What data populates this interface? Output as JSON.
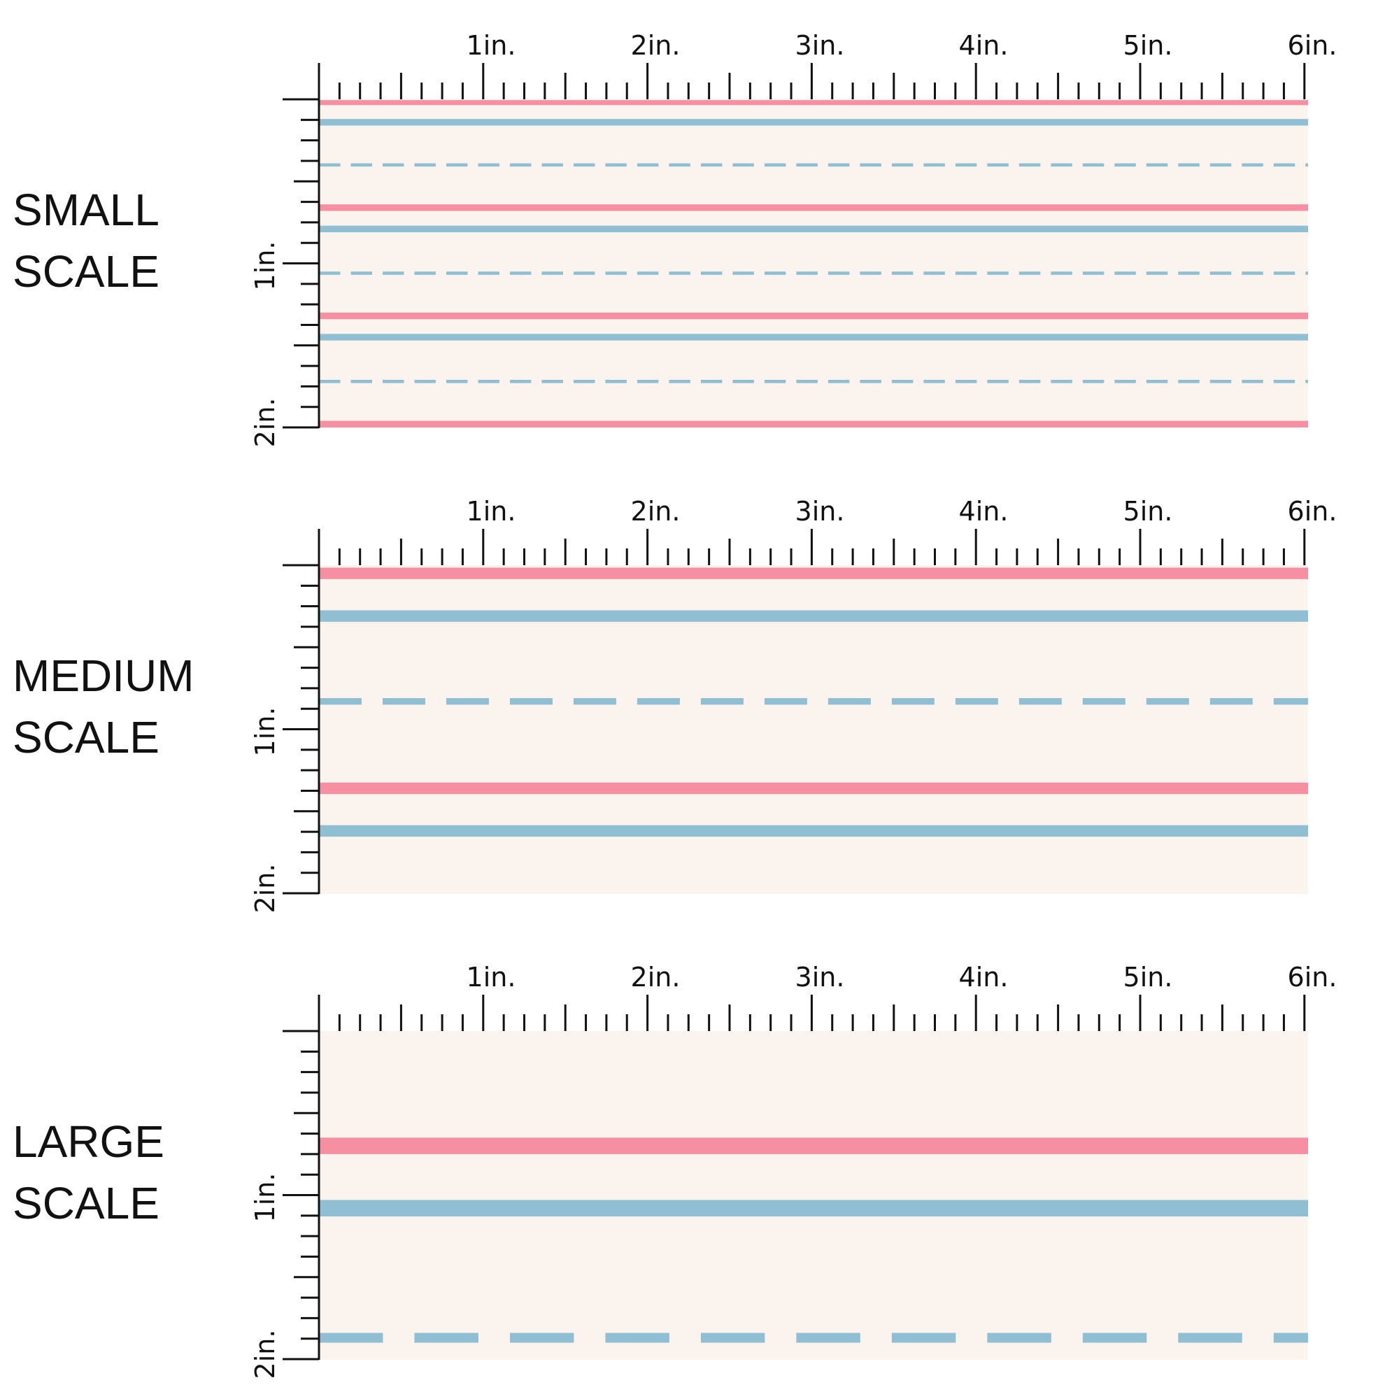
{
  "colors": {
    "background": "#ffffff",
    "fabric": "#fbf4ee",
    "pink": "#f78fa2",
    "blue": "#90bed3",
    "ruler": "#111111"
  },
  "units": {
    "x_labels": [
      "1in.",
      "2in.",
      "3in.",
      "4in.",
      "5in.",
      "6in."
    ],
    "y_labels": [
      "1in.",
      "2in."
    ]
  },
  "panels": [
    {
      "id": "small",
      "title_line1": "SMALL",
      "title_line2": "SCALE",
      "stripes": [
        {
          "y_in": 0.02,
          "color": "pink",
          "weight_in": 0.03,
          "style": "solid"
        },
        {
          "y_in": 0.14,
          "color": "blue",
          "weight_in": 0.04,
          "style": "solid"
        },
        {
          "y_in": 0.4,
          "color": "blue",
          "weight_in": 0.02,
          "style": "dashed"
        },
        {
          "y_in": 0.66,
          "color": "pink",
          "weight_in": 0.04,
          "style": "solid"
        },
        {
          "y_in": 0.79,
          "color": "blue",
          "weight_in": 0.04,
          "style": "solid"
        },
        {
          "y_in": 1.06,
          "color": "blue",
          "weight_in": 0.02,
          "style": "dashed"
        },
        {
          "y_in": 1.32,
          "color": "pink",
          "weight_in": 0.04,
          "style": "solid"
        },
        {
          "y_in": 1.45,
          "color": "blue",
          "weight_in": 0.04,
          "style": "solid"
        },
        {
          "y_in": 1.72,
          "color": "blue",
          "weight_in": 0.02,
          "style": "dashed"
        },
        {
          "y_in": 1.98,
          "color": "pink",
          "weight_in": 0.04,
          "style": "solid"
        }
      ]
    },
    {
      "id": "medium",
      "title_line1": "MEDIUM",
      "title_line2": "SCALE",
      "stripes": [
        {
          "y_in": 0.05,
          "color": "pink",
          "weight_in": 0.07,
          "style": "solid"
        },
        {
          "y_in": 0.31,
          "color": "blue",
          "weight_in": 0.07,
          "style": "solid"
        },
        {
          "y_in": 0.83,
          "color": "blue",
          "weight_in": 0.04,
          "style": "dashed"
        },
        {
          "y_in": 1.36,
          "color": "pink",
          "weight_in": 0.07,
          "style": "solid"
        },
        {
          "y_in": 1.62,
          "color": "blue",
          "weight_in": 0.07,
          "style": "solid"
        }
      ]
    },
    {
      "id": "large",
      "title_line1": "LARGE",
      "title_line2": "SCALE",
      "stripes": [
        {
          "y_in": 0.7,
          "color": "pink",
          "weight_in": 0.1,
          "style": "solid"
        },
        {
          "y_in": 1.08,
          "color": "blue",
          "weight_in": 0.1,
          "style": "solid"
        },
        {
          "y_in": 1.87,
          "color": "blue",
          "weight_in": 0.06,
          "style": "dashed"
        }
      ]
    }
  ]
}
